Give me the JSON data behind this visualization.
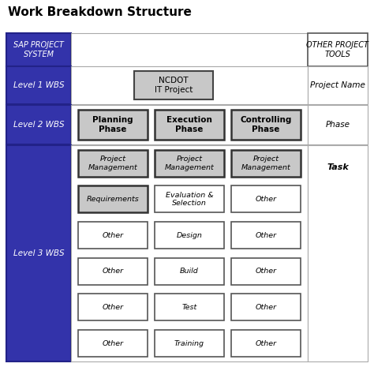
{
  "title": "Work Breakdown Structure",
  "title_fontsize": 11,
  "title_fontweight": "bold",
  "bg_color": "#ffffff",
  "blue_color": "#3333aa",
  "light_gray": "#c8c8c8",
  "white_color": "#ffffff",
  "level3_rows": [
    [
      {
        "text": "Project\nManagement",
        "gray": true,
        "italic": true
      },
      {
        "text": "Project\nManagement",
        "gray": true,
        "italic": true
      },
      {
        "text": "Project\nManagement",
        "gray": true,
        "italic": true
      }
    ],
    [
      {
        "text": "Requirements",
        "gray": true,
        "italic": true
      },
      {
        "text": "Evaluation &\nSelection",
        "gray": false,
        "italic": true
      },
      {
        "text": "Other",
        "gray": false,
        "italic": true
      }
    ],
    [
      {
        "text": "Other",
        "gray": false,
        "italic": true
      },
      {
        "text": "Design",
        "gray": false,
        "italic": true
      },
      {
        "text": "Other",
        "gray": false,
        "italic": true
      }
    ],
    [
      {
        "text": "Other",
        "gray": false,
        "italic": true
      },
      {
        "text": "Build",
        "gray": false,
        "italic": true
      },
      {
        "text": "Other",
        "gray": false,
        "italic": true
      }
    ],
    [
      {
        "text": "Other",
        "gray": false,
        "italic": true
      },
      {
        "text": "Test",
        "gray": false,
        "italic": true
      },
      {
        "text": "Other",
        "gray": false,
        "italic": true
      }
    ],
    [
      {
        "text": "Other",
        "gray": false,
        "italic": true
      },
      {
        "text": "Training",
        "gray": false,
        "italic": true
      },
      {
        "text": "Other",
        "gray": false,
        "italic": true
      }
    ]
  ]
}
